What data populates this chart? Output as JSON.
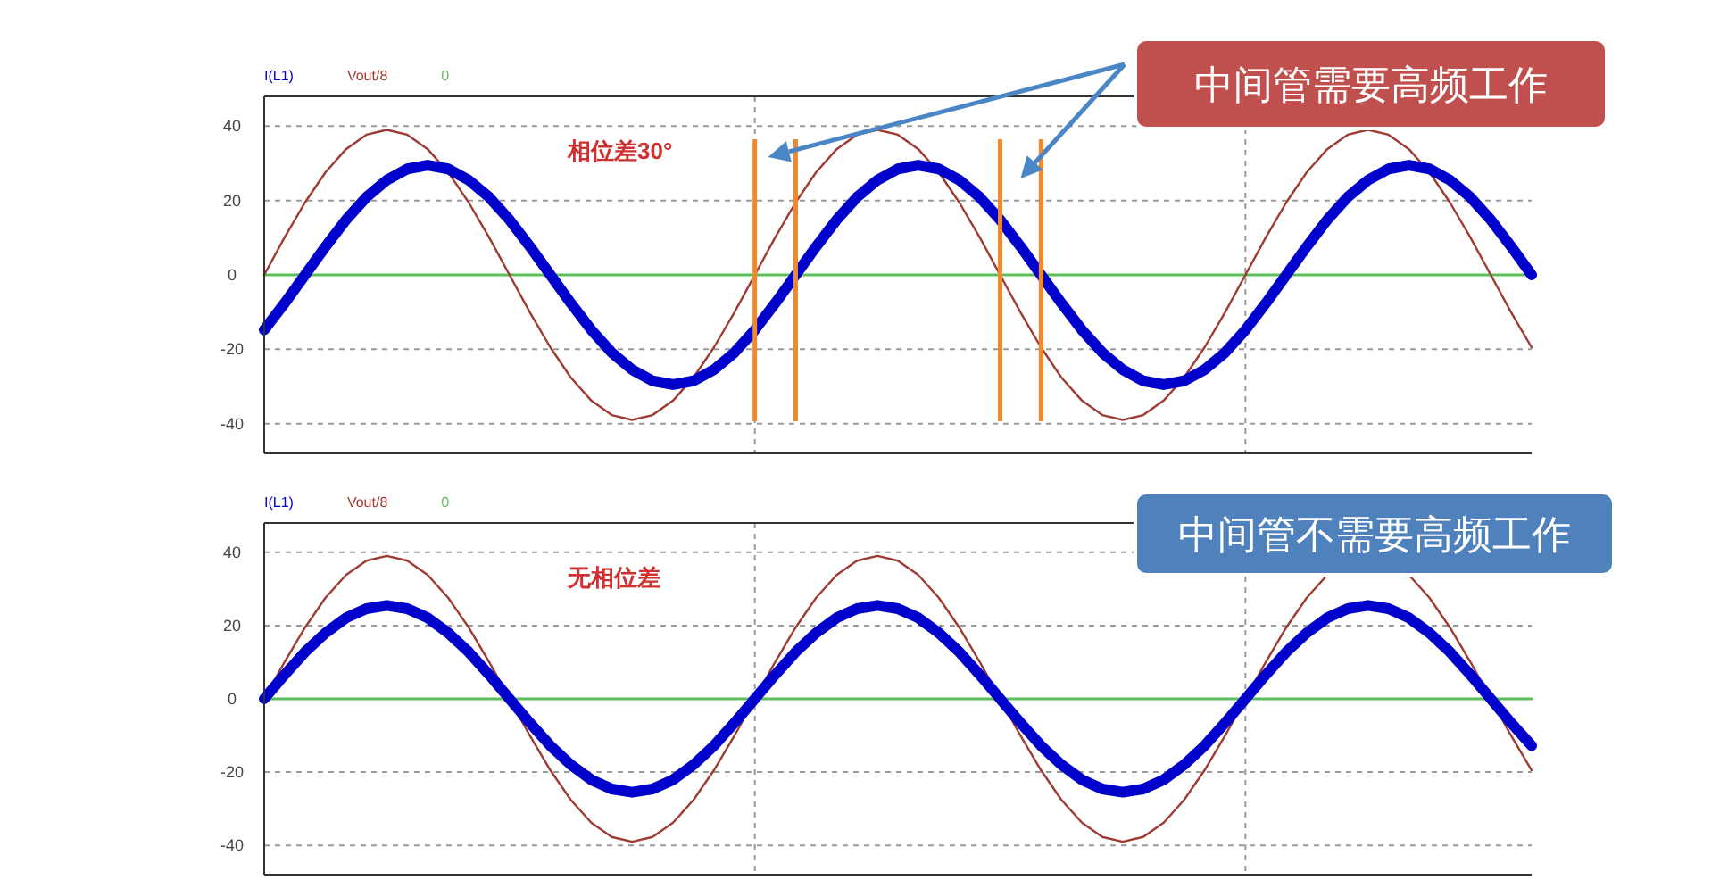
{
  "chart_data": [
    {
      "type": "line",
      "categories": [
        null,
        null,
        null,
        null,
        null,
        null,
        null,
        null,
        null,
        null,
        null,
        null,
        null,
        null,
        null,
        null,
        null,
        null,
        null,
        null,
        null,
        null,
        null,
        null,
        null,
        null,
        null,
        null,
        null,
        null,
        null,
        null,
        null,
        null,
        null,
        null,
        null,
        null,
        null,
        null,
        null,
        null,
        null,
        null,
        null,
        null,
        null,
        null,
        null,
        null,
        null,
        null,
        null,
        null,
        null,
        null,
        null,
        null,
        null,
        null,
        null,
        null,
        null
      ],
      "series": [
        {
          "name": "I(L1)",
          "color": "#0000cc",
          "values": [
            -14.8,
            -7.6,
            0,
            7.6,
            14.8,
            20.9,
            25.5,
            28.5,
            29.5,
            28.5,
            25.5,
            20.9,
            14.8,
            7.6,
            0,
            -7.6,
            -14.8,
            -20.9,
            -25.5,
            -28.5,
            -29.5,
            -28.5,
            -25.5,
            -20.9,
            -14.8,
            -7.6,
            0,
            7.6,
            14.8,
            20.9,
            25.5,
            28.5,
            29.5,
            28.5,
            25.5,
            20.9,
            14.8,
            7.6,
            0,
            -7.6,
            -14.8,
            -20.9,
            -25.5,
            -28.5,
            -29.5,
            -28.5,
            -25.5,
            -20.9,
            -14.8,
            -7.6,
            0,
            7.6,
            14.8,
            20.9,
            25.5,
            28.5,
            29.5,
            28.5,
            25.5,
            20.9,
            14.8,
            7.6,
            0
          ]
        },
        {
          "name": "Vout/8",
          "color": "#9e3b33",
          "values": [
            0,
            10.1,
            19.5,
            27.6,
            33.8,
            37.7,
            39,
            37.7,
            33.8,
            27.6,
            19.5,
            10.1,
            0,
            -10.1,
            -19.5,
            -27.6,
            -33.8,
            -37.7,
            -39,
            -37.7,
            -33.8,
            -27.6,
            -19.5,
            -10.1,
            0,
            10.1,
            19.5,
            27.6,
            33.8,
            37.7,
            39,
            37.7,
            33.8,
            27.6,
            19.5,
            10.1,
            0,
            -10.1,
            -19.5,
            -27.6,
            -33.8,
            -37.7,
            -39,
            -37.7,
            -33.8,
            -27.6,
            -19.5,
            -10.1,
            0,
            10.1,
            19.5,
            27.6,
            33.8,
            37.7,
            39,
            37.7,
            33.8,
            27.6,
            19.5,
            10.1,
            0,
            -10.1,
            -19.5
          ]
        },
        {
          "name": "0",
          "color": "#5cbf5c",
          "values": [
            0,
            0,
            0,
            0,
            0,
            0,
            0,
            0,
            0,
            0,
            0,
            0,
            0,
            0,
            0,
            0,
            0,
            0,
            0,
            0,
            0,
            0,
            0,
            0,
            0,
            0,
            0,
            0,
            0,
            0,
            0,
            0,
            0,
            0,
            0,
            0,
            0,
            0,
            0,
            0,
            0,
            0,
            0,
            0,
            0,
            0,
            0,
            0,
            0,
            0,
            0,
            0,
            0,
            0,
            0,
            0,
            0,
            0,
            0,
            0,
            0,
            0,
            0
          ]
        }
      ],
      "ylim": [
        -48,
        48
      ],
      "yticks": [
        -40,
        -20,
        0,
        20,
        40
      ],
      "grid": true,
      "legend": "top left",
      "tick_labels": "y",
      "annotations": [
        "相位差30°",
        "中间管需要高频工作"
      ]
    },
    {
      "type": "line",
      "categories": [
        null,
        null,
        null,
        null,
        null,
        null,
        null,
        null,
        null,
        null,
        null,
        null,
        null,
        null,
        null,
        null,
        null,
        null,
        null,
        null,
        null,
        null,
        null,
        null,
        null,
        null,
        null,
        null,
        null,
        null,
        null,
        null,
        null,
        null,
        null,
        null,
        null,
        null,
        null,
        null,
        null,
        null,
        null,
        null,
        null,
        null,
        null,
        null,
        null,
        null,
        null,
        null,
        null,
        null,
        null,
        null,
        null,
        null,
        null,
        null,
        null,
        null,
        null
      ],
      "series": [
        {
          "name": "I(L1)",
          "color": "#0000cc",
          "values": [
            0,
            6.6,
            12.8,
            18,
            22.1,
            24.6,
            25.5,
            24.6,
            22.1,
            18,
            12.8,
            6.6,
            0,
            -6.6,
            -12.8,
            -18,
            -22.1,
            -24.6,
            -25.5,
            -24.6,
            -22.1,
            -18,
            -12.8,
            -6.6,
            0,
            6.6,
            12.8,
            18,
            22.1,
            24.6,
            25.5,
            24.6,
            22.1,
            18,
            12.8,
            6.6,
            0,
            -6.6,
            -12.8,
            -18,
            -22.1,
            -24.6,
            -25.5,
            -24.6,
            -22.1,
            -18,
            -12.8,
            -6.6,
            0,
            6.6,
            12.8,
            18,
            22.1,
            24.6,
            25.5,
            24.6,
            22.1,
            18,
            12.8,
            6.6,
            0,
            -6.6,
            -12.8
          ]
        },
        {
          "name": "Vout/8",
          "color": "#9e3b33",
          "values": [
            0,
            10.1,
            19.5,
            27.6,
            33.8,
            37.7,
            39,
            37.7,
            33.8,
            27.6,
            19.5,
            10.1,
            0,
            -10.1,
            -19.5,
            -27.6,
            -33.8,
            -37.7,
            -39,
            -37.7,
            -33.8,
            -27.6,
            -19.5,
            -10.1,
            0,
            10.1,
            19.5,
            27.6,
            33.8,
            37.7,
            39,
            37.7,
            33.8,
            27.6,
            19.5,
            10.1,
            0,
            -10.1,
            -19.5,
            -27.6,
            -33.8,
            -37.7,
            -39,
            -37.7,
            -33.8,
            -27.6,
            -19.5,
            -10.1,
            0,
            10.1,
            19.5,
            27.6,
            33.8,
            null,
            null,
            null,
            33.8,
            27.6,
            19.5,
            10.1,
            0,
            -10.1,
            -19.5
          ]
        },
        {
          "name": "0",
          "color": "#5cbf5c",
          "values": [
            0,
            0,
            0,
            0,
            0,
            0,
            0,
            0,
            0,
            0,
            0,
            0,
            0,
            0,
            0,
            0,
            0,
            0,
            0,
            0,
            0,
            0,
            0,
            0,
            0,
            0,
            0,
            0,
            0,
            0,
            0,
            0,
            0,
            0,
            0,
            0,
            0,
            0,
            0,
            0,
            0,
            0,
            0,
            0,
            0,
            0,
            0,
            0,
            0,
            0,
            0,
            0,
            0,
            0,
            0,
            0,
            0,
            0,
            0,
            0,
            0,
            0,
            0
          ]
        }
      ],
      "ylim": [
        -48,
        48
      ],
      "yticks": [
        -40,
        -20,
        0,
        20,
        40
      ],
      "grid": true,
      "legend": "top left",
      "tick_labels": "y",
      "annotations": [
        "无相位差",
        "中间管不需要高频工作"
      ]
    }
  ]
}
